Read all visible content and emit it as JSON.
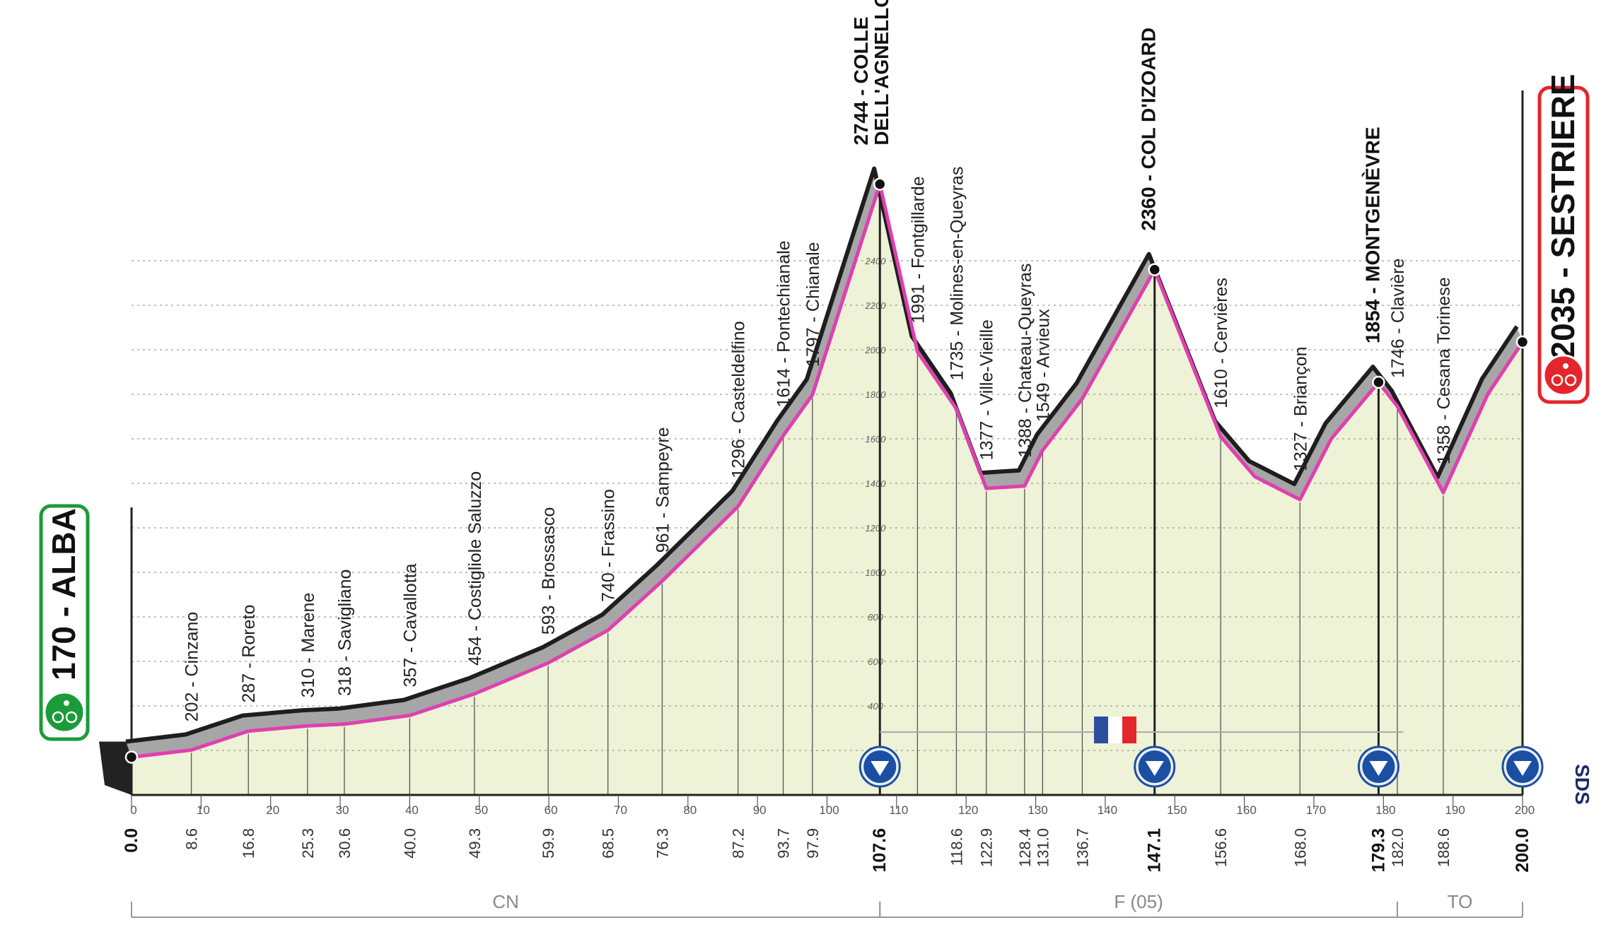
{
  "chart_data": {
    "type": "area",
    "title": "",
    "xlabel": "",
    "ylabel": "",
    "xlim": [
      0,
      200
    ],
    "ylim": [
      0,
      2744
    ],
    "y_ticks": [
      200,
      400,
      600,
      800,
      1000,
      1200,
      1400,
      1600,
      1800,
      2000,
      2200,
      2400
    ],
    "x_ticks": [
      0,
      10,
      20,
      30,
      40,
      50,
      60,
      70,
      80,
      90,
      100,
      110,
      120,
      130,
      140,
      150,
      160,
      170,
      180,
      190,
      200
    ],
    "profile": {
      "km": [
        0,
        8.6,
        16.8,
        25.3,
        30.6,
        40.0,
        49.3,
        59.9,
        68.5,
        76.3,
        87.2,
        93.7,
        97.9,
        107.6,
        113.0,
        118.6,
        122.9,
        128.4,
        131.0,
        136.7,
        147.1,
        156.6,
        161.5,
        168.0,
        172.5,
        179.3,
        182.0,
        188.6,
        195.0,
        200.0
      ],
      "altitude": [
        170,
        202,
        287,
        310,
        318,
        357,
        454,
        593,
        740,
        961,
        1296,
        1614,
        1797,
        2744,
        1991,
        1735,
        1377,
        1388,
        1549,
        1780,
        2360,
        1610,
        1430,
        1327,
        1600,
        1854,
        1746,
        1358,
        1800,
        2035
      ]
    },
    "start": {
      "label": "170 - ALBA",
      "km": 0,
      "altitude": 170
    },
    "finish": {
      "label": "2035 - SESTRIERE",
      "km": 200,
      "altitude": 2035
    },
    "points": [
      {
        "km": 8.6,
        "label": "202 - Cinzano",
        "km_label": "8.6"
      },
      {
        "km": 16.8,
        "label": "287 - Roreto",
        "km_label": "16.8"
      },
      {
        "km": 25.3,
        "label": "310 - Marene",
        "km_label": "25.3"
      },
      {
        "km": 30.6,
        "label": "318 - Savigliano",
        "km_label": "30.6"
      },
      {
        "km": 40.0,
        "label": "357 - Cavallotta",
        "km_label": "40.0"
      },
      {
        "km": 49.3,
        "label": "454 - Costigliole Saluzzo",
        "km_label": "49.3"
      },
      {
        "km": 59.9,
        "label": "593 - Brossasco",
        "km_label": "59.9"
      },
      {
        "km": 68.5,
        "label": "740 - Frassino",
        "km_label": "68.5"
      },
      {
        "km": 76.3,
        "label": "961 - Sampeyre",
        "km_label": "76.3"
      },
      {
        "km": 87.2,
        "label": "1296 - Casteldelfino",
        "km_label": "87.2"
      },
      {
        "km": 93.7,
        "label": "1614 - Pontechianale",
        "km_label": "93.7"
      },
      {
        "km": 97.9,
        "label": "1797 - Chianale",
        "km_label": "97.9"
      },
      {
        "km": 113.0,
        "label": "1991 - Fontgillarde",
        "km_label": ""
      },
      {
        "km": 118.6,
        "label": "1735 - Molines-en-Queyras",
        "km_label": "118.6"
      },
      {
        "km": 122.9,
        "label": "1377 - Ville-Vieille",
        "km_label": "122.9"
      },
      {
        "km": 128.4,
        "label": "1388 - Chateau-Queyras",
        "km_label": "128.4"
      },
      {
        "km": 131.0,
        "label": "1549 - Arvieux",
        "km_label": "131.0"
      },
      {
        "km": 136.7,
        "label": "",
        "km_label": "136.7"
      },
      {
        "km": 156.6,
        "label": "1610 - Cervières",
        "km_label": "156.6"
      },
      {
        "km": 168.0,
        "label": "1327 - Briançon",
        "km_label": "168.0"
      },
      {
        "km": 182.0,
        "label": "1746 - Clavière",
        "km_label": "182.0"
      },
      {
        "km": 188.6,
        "label": "1358 - Cesana Torinese",
        "km_label": "188.6"
      }
    ],
    "climbs": [
      {
        "km": 107.6,
        "line1": "2744 - COLLE",
        "line2": "DELL'AGNELLO",
        "km_label": "107.6"
      },
      {
        "km": 147.1,
        "line1": "2360 - COL D'IZOARD",
        "line2": "",
        "km_label": "147.1"
      },
      {
        "km": 179.3,
        "line1": "1854 - MONTGENÈVRE",
        "line2": "",
        "km_label": "179.3"
      }
    ],
    "start_km_label": "0.0",
    "finish_km_label": "200.0",
    "regions": [
      {
        "label": "CN",
        "from": 0,
        "to": 107.6
      },
      {
        "label": "F (05)",
        "from": 107.6,
        "to": 182.0
      },
      {
        "label": "TO",
        "from": 182.0,
        "to": 200.0
      }
    ],
    "france_segment": {
      "from": 107.6,
      "to": 182.0
    },
    "logo": "SDS",
    "colors": {
      "fill": "#eef2d6",
      "slope": "#a6a6a6",
      "ridge": "#1e1e1e",
      "road": "#e03fb0",
      "start_badge": "#1c9b3a",
      "finish_badge": "#e4252c",
      "marker": "#1b4fa3"
    }
  }
}
